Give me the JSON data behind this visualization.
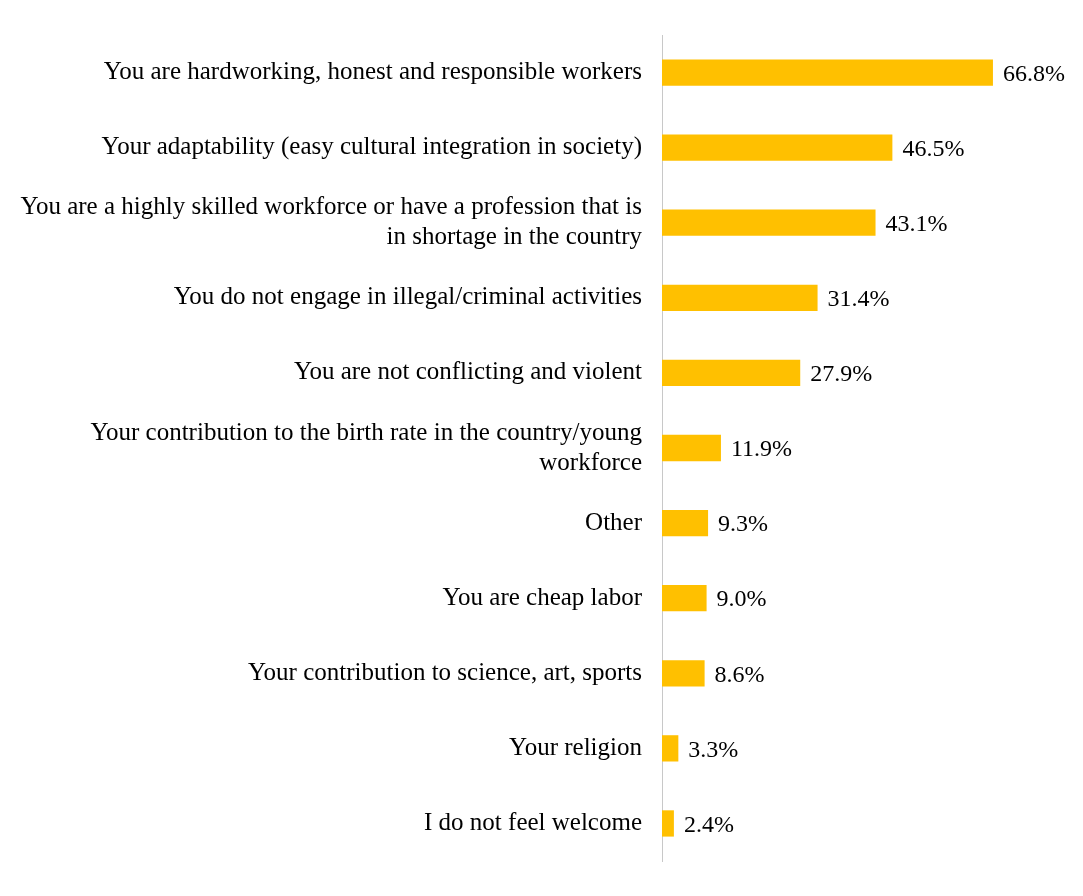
{
  "chart_data": {
    "type": "bar",
    "orientation": "horizontal",
    "categories": [
      "You are hardworking, honest and responsible workers",
      "Your adaptability (easy cultural integration in society)",
      "You are a highly skilled workforce or have a profession that is in shortage in the country",
      "You do not engage in illegal/criminal activities",
      "You are not conflicting and violent",
      "Your contribution to the birth rate in the country/young workforce",
      "Other",
      "You are cheap labor",
      "Your contribution to science, art, sports",
      "Your religion",
      "I do not feel welcome"
    ],
    "values": [
      66.8,
      46.5,
      43.1,
      31.4,
      27.9,
      11.9,
      9.3,
      9.0,
      8.6,
      3.3,
      2.4
    ],
    "value_labels": [
      "66.8%",
      "46.5%",
      "43.1%",
      "31.4%",
      "27.9%",
      "11.9%",
      "9.3%",
      "9.0%",
      "8.6%",
      "3.3%",
      "2.4%"
    ],
    "color": "#ffc000",
    "grid": false,
    "legend": false
  }
}
